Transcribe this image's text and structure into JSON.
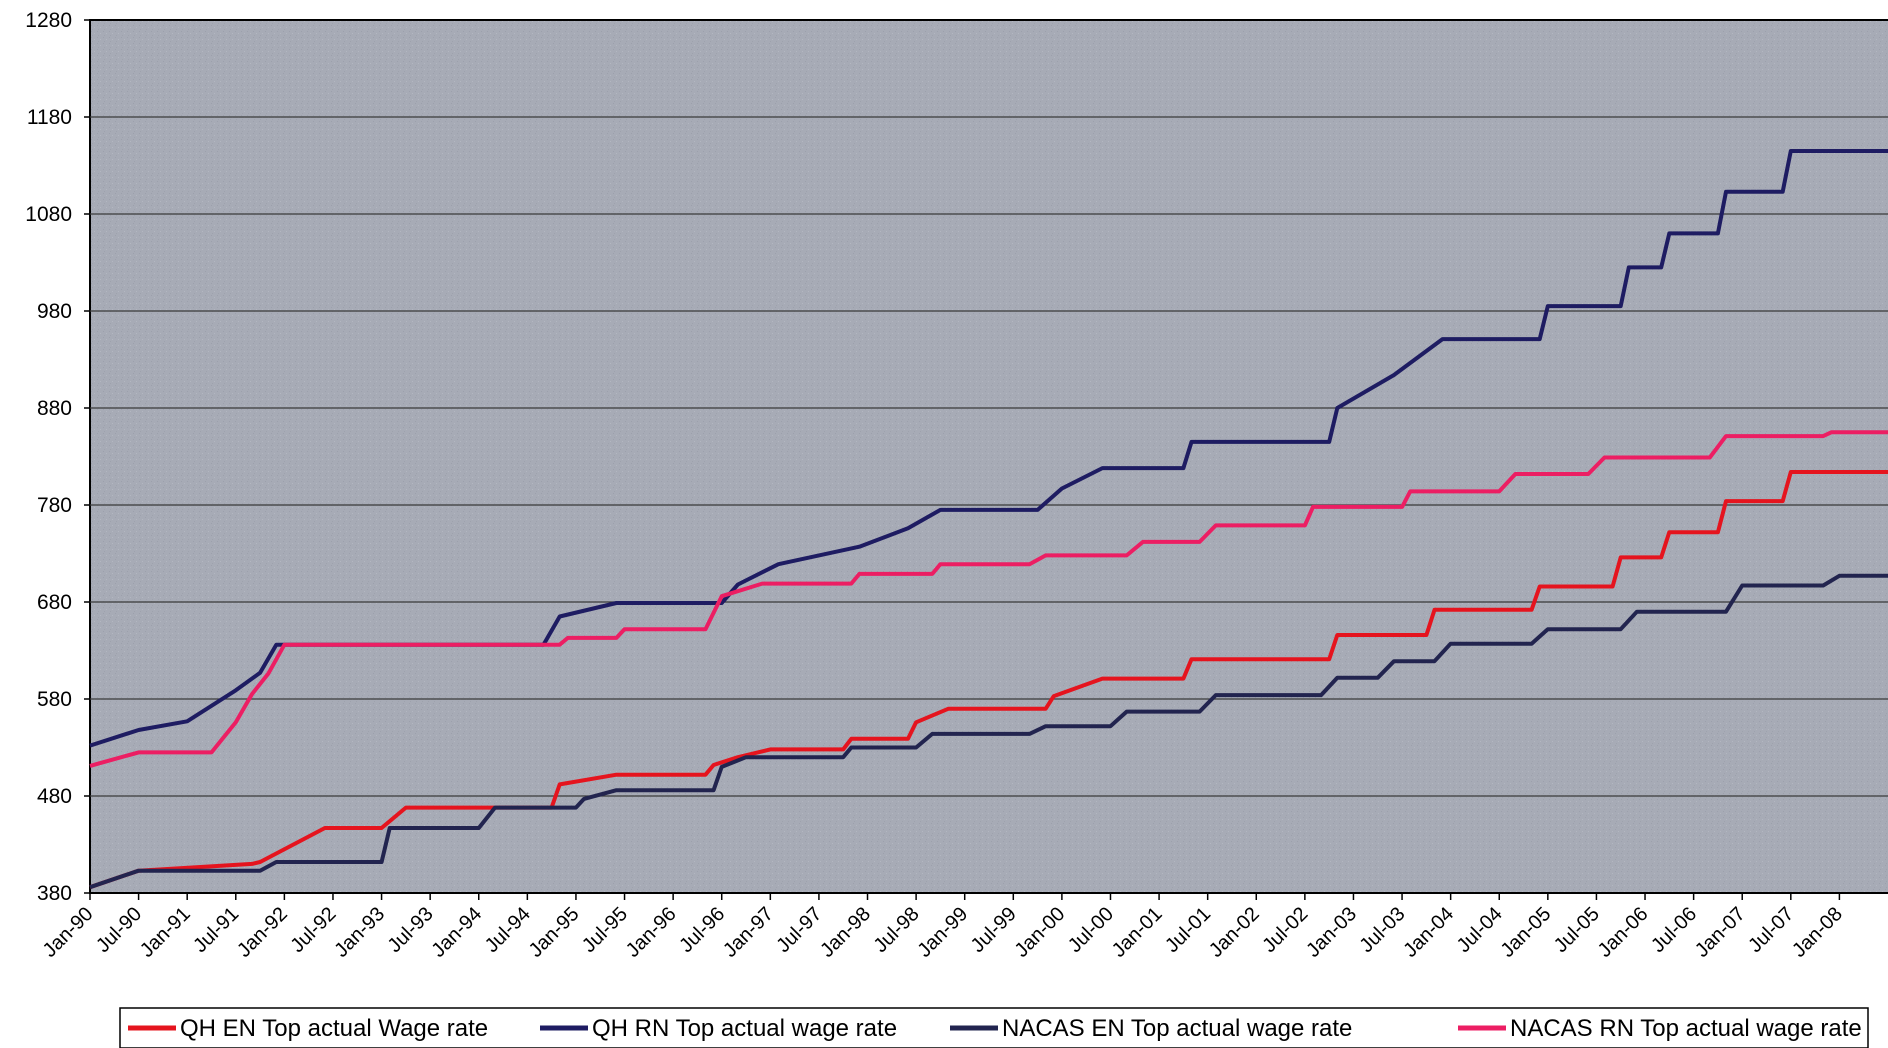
{
  "chart_data": {
    "type": "line",
    "title": "",
    "xlabel": "",
    "ylabel": "",
    "ylim": [
      380,
      1280
    ],
    "y_ticks": [
      "1280",
      "1180",
      "1080",
      "980",
      "880",
      "780",
      "680",
      "580",
      "480",
      "380"
    ],
    "x_ticks": [
      "Jan-90",
      "Jul-90",
      "Jan-91",
      "Jul-91",
      "Jan-92",
      "Jul-92",
      "Jan-93",
      "Jul-93",
      "Jan-94",
      "Jul-94",
      "Jan-95",
      "Jul-95",
      "Jan-96",
      "Jul-96",
      "Jan-97",
      "Jul-97",
      "Jan-98",
      "Jul-98",
      "Jan-99",
      "Jul-99",
      "Jan-00",
      "Jul-00",
      "Jan-01",
      "Jul-01",
      "Jan-02",
      "Jul-02",
      "Jan-03",
      "Jul-03",
      "Jan-04",
      "Jul-04",
      "Jan-05",
      "Jul-05",
      "Jan-06",
      "Jul-06",
      "Jan-07",
      "Jul-07",
      "Jan-08"
    ],
    "grid": "horizontal",
    "background": "#a7abb6",
    "legend_position": "bottom",
    "series": [
      {
        "name": "QH EN Top actual Wage rate",
        "color": "#e5141e",
        "points": [
          [
            "1990-01",
            386
          ],
          [
            "1990-07",
            403
          ],
          [
            "1991-09",
            410
          ],
          [
            "1991-10",
            412
          ],
          [
            "1992-06",
            447
          ],
          [
            "1993-01",
            447
          ],
          [
            "1993-04",
            468
          ],
          [
            "1994-10",
            468
          ],
          [
            "1994-11",
            492
          ],
          [
            "1995-06",
            502
          ],
          [
            "1996-05",
            502
          ],
          [
            "1996-06",
            512
          ],
          [
            "1996-09",
            520
          ],
          [
            "1997-01",
            528
          ],
          [
            "1997-10",
            528
          ],
          [
            "1997-11",
            539
          ],
          [
            "1998-06",
            539
          ],
          [
            "1998-07",
            556
          ],
          [
            "1998-11",
            570
          ],
          [
            "1999-11",
            570
          ],
          [
            "1999-12",
            583
          ],
          [
            "2000-06",
            601
          ],
          [
            "2001-04",
            601
          ],
          [
            "2001-05",
            621
          ],
          [
            "2002-10",
            621
          ],
          [
            "2002-11",
            646
          ],
          [
            "2003-10",
            646
          ],
          [
            "2003-11",
            672
          ],
          [
            "2004-11",
            672
          ],
          [
            "2004-12",
            696
          ],
          [
            "2005-09",
            696
          ],
          [
            "2005-10",
            726
          ],
          [
            "2006-03",
            726
          ],
          [
            "2006-04",
            752
          ],
          [
            "2006-10",
            752
          ],
          [
            "2006-11",
            784
          ],
          [
            "2007-06",
            784
          ],
          [
            "2007-07",
            814
          ],
          [
            "2008-05",
            814
          ]
        ]
      },
      {
        "name": "QH RN Top actual wage rate",
        "color": "#1e1c62",
        "points": [
          [
            "1990-01",
            532
          ],
          [
            "1990-07",
            548
          ],
          [
            "1991-01",
            557
          ],
          [
            "1991-07",
            589
          ],
          [
            "1991-10",
            607
          ],
          [
            "1991-12",
            636
          ],
          [
            "1994-09",
            636
          ],
          [
            "1994-11",
            665
          ],
          [
            "1995-06",
            679
          ],
          [
            "1996-07",
            679
          ],
          [
            "1996-09",
            698
          ],
          [
            "1997-02",
            719
          ],
          [
            "1997-12",
            737
          ],
          [
            "1998-06",
            756
          ],
          [
            "1998-10",
            775
          ],
          [
            "1999-10",
            775
          ],
          [
            "2000-01",
            797
          ],
          [
            "2000-06",
            818
          ],
          [
            "2001-04",
            818
          ],
          [
            "2001-05",
            845
          ],
          [
            "2002-10",
            845
          ],
          [
            "2002-11",
            880
          ],
          [
            "2003-06",
            914
          ],
          [
            "2003-12",
            951
          ],
          [
            "2004-12",
            951
          ],
          [
            "2005-01",
            985
          ],
          [
            "2005-10",
            985
          ],
          [
            "2005-11",
            1025
          ],
          [
            "2006-03",
            1025
          ],
          [
            "2006-04",
            1060
          ],
          [
            "2006-10",
            1060
          ],
          [
            "2006-11",
            1103
          ],
          [
            "2007-06",
            1103
          ],
          [
            "2007-07",
            1145
          ],
          [
            "2008-05",
            1145
          ]
        ]
      },
      {
        "name": "NACAS EN Top actual wage rate",
        "color": "#22244f",
        "points": [
          [
            "1990-01",
            386
          ],
          [
            "1990-07",
            403
          ],
          [
            "1991-10",
            403
          ],
          [
            "1991-12",
            412
          ],
          [
            "1993-01",
            412
          ],
          [
            "1993-02",
            447
          ],
          [
            "1994-01",
            447
          ],
          [
            "1994-03",
            468
          ],
          [
            "1995-01",
            468
          ],
          [
            "1995-02",
            477
          ],
          [
            "1995-06",
            486
          ],
          [
            "1996-06",
            486
          ],
          [
            "1996-07",
            510
          ],
          [
            "1996-10",
            520
          ],
          [
            "1997-10",
            520
          ],
          [
            "1997-11",
            530
          ],
          [
            "1998-07",
            530
          ],
          [
            "1998-09",
            544
          ],
          [
            "1999-09",
            544
          ],
          [
            "1999-11",
            552
          ],
          [
            "2000-07",
            552
          ],
          [
            "2000-09",
            567
          ],
          [
            "2001-06",
            567
          ],
          [
            "2001-08",
            584
          ],
          [
            "2002-09",
            584
          ],
          [
            "2002-11",
            602
          ],
          [
            "2003-04",
            602
          ],
          [
            "2003-06",
            619
          ],
          [
            "2003-11",
            619
          ],
          [
            "2004-01",
            637
          ],
          [
            "2004-11",
            637
          ],
          [
            "2005-01",
            652
          ],
          [
            "2005-10",
            652
          ],
          [
            "2005-12",
            670
          ],
          [
            "2006-11",
            670
          ],
          [
            "2007-01",
            697
          ],
          [
            "2007-11",
            697
          ],
          [
            "2008-01",
            707
          ],
          [
            "2008-05",
            707
          ]
        ]
      },
      {
        "name": "NACAS RN Top actual wage rate",
        "color": "#ec1e63",
        "points": [
          [
            "1990-01",
            511
          ],
          [
            "1990-07",
            525
          ],
          [
            "1991-04",
            525
          ],
          [
            "1991-07",
            556
          ],
          [
            "1991-09",
            585
          ],
          [
            "1991-11",
            606
          ],
          [
            "1992-01",
            636
          ],
          [
            "1994-11",
            636
          ],
          [
            "1994-12",
            643
          ],
          [
            "1995-06",
            643
          ],
          [
            "1995-07",
            652
          ],
          [
            "1996-05",
            652
          ],
          [
            "1996-07",
            686
          ],
          [
            "1996-12",
            699
          ],
          [
            "1997-11",
            699
          ],
          [
            "1997-12",
            709
          ],
          [
            "1998-09",
            709
          ],
          [
            "1998-10",
            719
          ],
          [
            "1999-09",
            719
          ],
          [
            "1999-11",
            728
          ],
          [
            "2000-09",
            728
          ],
          [
            "2000-11",
            742
          ],
          [
            "2001-06",
            742
          ],
          [
            "2001-08",
            759
          ],
          [
            "2002-07",
            759
          ],
          [
            "2002-08",
            778
          ],
          [
            "2003-07",
            778
          ],
          [
            "2003-08",
            794
          ],
          [
            "2004-07",
            794
          ],
          [
            "2004-09",
            812
          ],
          [
            "2005-06",
            812
          ],
          [
            "2005-08",
            829
          ],
          [
            "2006-09",
            829
          ],
          [
            "2006-11",
            851
          ],
          [
            "2007-11",
            851
          ],
          [
            "2007-12",
            855
          ],
          [
            "2008-05",
            855
          ]
        ]
      }
    ]
  }
}
